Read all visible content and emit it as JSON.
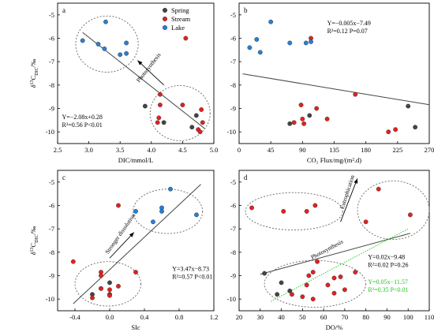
{
  "colors": {
    "spring": "#444444",
    "stream": "#e02222",
    "lake": "#2a7fd4",
    "fit": "#444444",
    "fit_green": "#2ecc2e"
  },
  "legend": {
    "spring": "Spring",
    "stream": "Stream",
    "lake": "Lake"
  },
  "ylabel": {
    "main": "δ",
    "sup": "13",
    "sub": "C",
    "subsub": "DIC",
    "unit": "/‰"
  },
  "chart_data": [
    {
      "type": "scatter",
      "panel": "a",
      "xlabel": "DIC/mmol/L",
      "xlim": [
        2.5,
        5.0
      ],
      "ylim": [
        -10.5,
        -4.5
      ],
      "xticks": [
        2.5,
        3.0,
        3.5,
        4.0,
        4.5,
        5.0
      ],
      "xticklabels": [
        "2.5",
        "3.0",
        "3.5",
        "4.0",
        "4.5",
        "5.0"
      ],
      "yticks": [
        -10,
        -9,
        -8,
        -7,
        -6,
        -5
      ],
      "yticklabels": [
        "-10",
        "-9",
        "-8",
        "-7",
        "-6",
        "-5"
      ],
      "series": [
        {
          "group": "spring",
          "points": [
            [
              3.9,
              -8.9
            ],
            [
              4.2,
              -9.6
            ],
            [
              4.65,
              -9.8
            ],
            [
              4.72,
              -9.3
            ]
          ]
        },
        {
          "group": "stream",
          "points": [
            [
              4.1,
              -9.6
            ],
            [
              4.12,
              -9.4
            ],
            [
              4.14,
              -8.85
            ],
            [
              4.14,
              -8.4
            ],
            [
              4.5,
              -8.85
            ],
            [
              4.55,
              -6.0
            ],
            [
              4.75,
              -9.9
            ],
            [
              4.78,
              -10.0
            ],
            [
              4.8,
              -9.05
            ],
            [
              4.82,
              -9.6
            ]
          ]
        },
        {
          "group": "lake",
          "points": [
            [
              2.9,
              -6.1
            ],
            [
              3.15,
              -6.25
            ],
            [
              3.25,
              -6.45
            ],
            [
              3.27,
              -5.3
            ],
            [
              3.5,
              -6.7
            ],
            [
              3.6,
              -6.65
            ],
            [
              3.6,
              -6.2
            ]
          ]
        }
      ],
      "fits": [
        {
          "x": [
            2.9,
            4.85
          ],
          "y": [
            -5.75,
            -9.85
          ],
          "color": "fit"
        }
      ],
      "ellipses": [
        {
          "cx": 3.29,
          "cy": -6.25,
          "rx": 0.5,
          "ry": 1.2
        },
        {
          "cx": 4.46,
          "cy": -9.2,
          "rx": 0.48,
          "ry": 1.18
        }
      ],
      "equations": [
        {
          "lines": [
            "Y=−2.08x+0.28",
            "R²=0.56 P<0.01"
          ],
          "x": 2.57,
          "y": -9.45,
          "color": "black"
        }
      ],
      "annotations": [
        {
          "text": "Photosynthesis",
          "x": 3.98,
          "y": -7.3,
          "angle": -52
        }
      ],
      "arrows": [
        {
          "from": [
            4.2,
            -8.0
          ],
          "to": [
            3.78,
            -6.95
          ]
        }
      ],
      "legend": true
    },
    {
      "type": "scatter",
      "panel": "b",
      "xlabel": "CO₂ Flux/mg/(m².d)",
      "xlim": [
        0,
        270
      ],
      "ylim": [
        -10.5,
        -4.5
      ],
      "xticks": [
        0,
        45,
        90,
        135,
        180,
        225,
        270
      ],
      "xticklabels": [
        "0",
        "45",
        "90",
        "135",
        "180",
        "225",
        "270"
      ],
      "yticks": [
        -10,
        -9,
        -8,
        -7,
        -6,
        -5
      ],
      "yticklabels": [
        "-10",
        "-9",
        "-8",
        "-7",
        "-6",
        "-5"
      ],
      "series": [
        {
          "group": "spring",
          "points": [
            [
              72,
              -9.65
            ],
            [
              100,
              -9.3
            ],
            [
              240,
              -8.9
            ],
            [
              250,
              -9.8
            ]
          ]
        },
        {
          "group": "stream",
          "points": [
            [
              78,
              -9.6
            ],
            [
              88,
              -8.85
            ],
            [
              90,
              -9.45
            ],
            [
              92,
              -9.65
            ],
            [
              102,
              -6.0
            ],
            [
              110,
              -9.0
            ],
            [
              125,
              -9.45
            ],
            [
              165,
              -8.4
            ],
            [
              212,
              -10.0
            ],
            [
              222,
              -9.9
            ]
          ]
        },
        {
          "group": "lake",
          "points": [
            [
              15,
              -6.4
            ],
            [
              25,
              -6.05
            ],
            [
              30,
              -6.6
            ],
            [
              45,
              -5.3
            ],
            [
              72,
              -6.2
            ],
            [
              95,
              -6.2
            ],
            [
              102,
              -6.15
            ]
          ]
        }
      ],
      "fits": [
        {
          "x": [
            5,
            270
          ],
          "y": [
            -7.52,
            -8.84
          ],
          "color": "fit"
        }
      ],
      "equations": [
        {
          "lines": [
            "Y=−0.005x−7.49",
            "R²=0.12 P=0.07"
          ],
          "x": 125,
          "y": -5.45,
          "color": "black"
        }
      ]
    },
    {
      "type": "scatter",
      "panel": "c",
      "xlabel": "SIc",
      "xlim": [
        -0.6,
        1.2
      ],
      "ylim": [
        -10.5,
        -4.5
      ],
      "xticks": [
        -0.4,
        0.0,
        0.4,
        0.8,
        1.2
      ],
      "xticklabels": [
        "-0.4",
        "0.0",
        "0.4",
        "0.8",
        "1.2"
      ],
      "yticks": [
        -10,
        -9,
        -8,
        -7,
        -6,
        -5
      ],
      "yticklabels": [
        "-10",
        "-9",
        "-8",
        "-7",
        "-6",
        "-5"
      ],
      "series": [
        {
          "group": "spring",
          "points": [
            [
              -0.1,
              -9.55
            ],
            [
              0.0,
              -9.3
            ],
            [
              0.0,
              -9.8
            ],
            [
              -0.2,
              -9.8
            ]
          ]
        },
        {
          "group": "stream",
          "points": [
            [
              -0.42,
              -8.4
            ],
            [
              -0.2,
              -9.95
            ],
            [
              -0.1,
              -8.85
            ],
            [
              -0.1,
              -9.0
            ],
            [
              -0.1,
              -9.55
            ],
            [
              0.0,
              -9.6
            ],
            [
              0.0,
              -9.85
            ],
            [
              0.1,
              -9.45
            ],
            [
              0.1,
              -6.0
            ],
            [
              0.3,
              -8.85
            ]
          ]
        },
        {
          "group": "lake",
          "points": [
            [
              0.3,
              -6.25
            ],
            [
              0.5,
              -6.7
            ],
            [
              0.6,
              -6.1
            ],
            [
              0.6,
              -6.25
            ],
            [
              0.7,
              -5.3
            ],
            [
              1.0,
              -6.4
            ]
          ]
        }
      ],
      "fits": [
        {
          "x": [
            -0.42,
            1.05
          ],
          "y": [
            -10.2,
            -5.1
          ],
          "color": "fit"
        }
      ],
      "ellipses": [
        {
          "cx": -0.02,
          "cy": -9.35,
          "rx": 0.38,
          "ry": 0.95
        },
        {
          "cx": 0.67,
          "cy": -6.25,
          "rx": 0.4,
          "ry": 0.95
        }
      ],
      "equations": [
        {
          "lines": [
            "Y=3.47x−8.73",
            "R²=0.57 P<0.01"
          ],
          "x": 0.72,
          "y": -8.8,
          "color": "black"
        }
      ],
      "annotations": [
        {
          "text": "Stronger dissolution",
          "x": 0.14,
          "y": -7.25,
          "angle": -55
        }
      ],
      "arrows": [
        {
          "from": [
            0.0,
            -8.25
          ],
          "to": [
            0.28,
            -7.15
          ]
        }
      ]
    },
    {
      "type": "scatter",
      "panel": "d",
      "xlabel": "DO/%",
      "xlim": [
        20,
        110
      ],
      "ylim": [
        -10.5,
        -4.5
      ],
      "xticks": [
        20,
        30,
        40,
        50,
        60,
        70,
        80,
        90,
        100,
        110
      ],
      "xticklabels": [
        "20",
        "30",
        "40",
        "50",
        "60",
        "70",
        "80",
        "90",
        "100",
        "110"
      ],
      "yticks": [
        -10,
        -9,
        -8,
        -7,
        -6,
        -5
      ],
      "yticklabels": [
        "-10",
        "-9",
        "-8",
        "-7",
        "-6",
        "-5"
      ],
      "series": [
        {
          "group": "spring",
          "points": [
            [
              32,
              -8.9
            ],
            [
              38,
              -9.8
            ],
            [
              40,
              -9.3
            ],
            [
              44,
              -9.65
            ]
          ]
        },
        {
          "group": "stream",
          "points": [
            [
              45,
              -9.8
            ],
            [
              50,
              -9.9
            ],
            [
              52,
              -9.4
            ],
            [
              53,
              -9.0
            ],
            [
              55,
              -8.85
            ],
            [
              55,
              -10.0
            ],
            [
              57,
              -8.4
            ],
            [
              62,
              -9.4
            ],
            [
              65,
              -9.1
            ],
            [
              65,
              -9.75
            ],
            [
              68,
              -9.05
            ],
            [
              70,
              -9.6
            ],
            [
              75,
              -8.85
            ],
            [
              86,
              -5.3
            ],
            [
              101,
              -6.4
            ]
          ]
        },
        {
          "group": "lake",
          "points": []
        }
      ],
      "stream_upper": [
        [
          26,
          -6.1
        ],
        [
          41,
          -6.25
        ],
        [
          52,
          -6.25
        ],
        [
          56,
          -6.0
        ],
        [
          80,
          -6.7
        ]
      ],
      "fits": [
        {
          "x": [
            30,
            101
          ],
          "y": [
            -8.94,
            -7.19
          ],
          "color": "fit"
        },
        {
          "x": [
            35,
            100
          ],
          "y": [
            -10.1,
            -7.0
          ],
          "color": "fit_green",
          "dashed": true
        }
      ],
      "ellipses": [
        {
          "cx": 46,
          "cy": -6.25,
          "rx": 23,
          "ry": 0.8
        },
        {
          "cx": 93,
          "cy": -6.2,
          "rx": 17,
          "ry": 1.25
        },
        {
          "cx": 56,
          "cy": -9.35,
          "rx": 24,
          "ry": 1.0
        }
      ],
      "equations": [
        {
          "lines": [
            "Y=0.02x−9.48",
            "R²=0.02 P=0.26"
          ],
          "x": 81,
          "y": -8.3,
          "color": "black"
        },
        {
          "lines": [
            "Y=0.05x−11.57",
            "R²=0.35 P<0.01"
          ],
          "x": 81,
          "y": -9.35,
          "color": "green"
        }
      ],
      "annotations": [
        {
          "text": "Eutrophication",
          "x": 72,
          "y": -5.45,
          "angle": -72
        },
        {
          "text": "Photosynthesis",
          "x": 62,
          "y": -7.95,
          "angle": -28,
          "green": true
        }
      ],
      "arrows": [
        {
          "from": [
            68,
            -6.7
          ],
          "to": [
            76,
            -4.85
          ]
        }
      ]
    }
  ]
}
